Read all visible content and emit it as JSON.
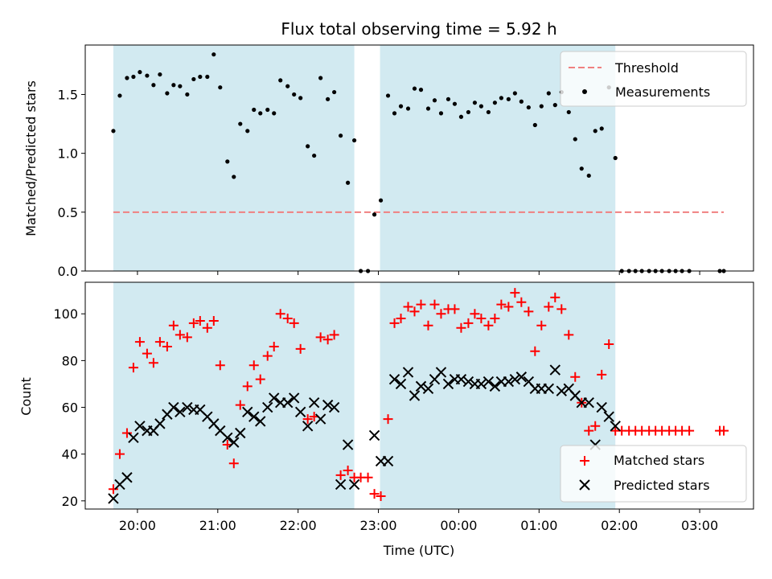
{
  "chart_data": [
    {
      "type": "scatter",
      "title": "Flux total observing time = 5.92 h",
      "xlabel": "",
      "ylabel": "Matched/Predicted stars",
      "x_units": "hours since 19:00 UTC",
      "xlim": [
        19.35,
        27.67
      ],
      "ylim": [
        0,
        1.92
      ],
      "yticks": [
        0.0,
        0.5,
        1.0,
        1.5
      ],
      "ytick_labels": [
        "0.0",
        "0.5",
        "1.0",
        "1.5"
      ],
      "xticks": [
        20,
        21,
        22,
        23,
        24,
        25,
        26,
        27
      ],
      "grid": false,
      "legend_position": "upper right",
      "shaded_regions": [
        [
          19.7,
          22.7
        ],
        [
          23.02,
          25.95
        ]
      ],
      "shade_color": "#add8e6",
      "threshold": {
        "name": "Threshold",
        "value": 0.5,
        "x_range": [
          19.7,
          27.3
        ],
        "color": "#f08080"
      },
      "series": [
        {
          "name": "Measurements",
          "marker": "dot",
          "color": "#000000",
          "x": [
            19.7,
            19.78,
            19.87,
            19.95,
            20.03,
            20.12,
            20.2,
            20.28,
            20.37,
            20.45,
            20.53,
            20.62,
            20.7,
            20.78,
            20.87,
            20.95,
            21.03,
            21.12,
            21.2,
            21.28,
            21.37,
            21.45,
            21.53,
            21.62,
            21.7,
            21.78,
            21.87,
            21.95,
            22.03,
            22.12,
            22.2,
            22.28,
            22.37,
            22.45,
            22.53,
            22.62,
            22.7,
            22.78,
            22.87,
            22.95,
            23.03,
            23.12,
            23.2,
            23.28,
            23.37,
            23.45,
            23.53,
            23.62,
            23.7,
            23.78,
            23.87,
            23.95,
            24.03,
            24.12,
            24.2,
            24.28,
            24.37,
            24.45,
            24.53,
            24.62,
            24.7,
            24.78,
            24.87,
            24.95,
            25.03,
            25.12,
            25.2,
            25.28,
            25.37,
            25.45,
            25.53,
            25.62,
            25.7,
            25.78,
            25.87,
            25.95,
            26.03,
            26.12,
            26.2,
            26.28,
            26.37,
            26.45,
            26.53,
            26.62,
            26.7,
            26.78,
            26.87,
            27.25,
            27.3
          ],
          "y": [
            1.19,
            1.49,
            1.64,
            1.65,
            1.69,
            1.66,
            1.58,
            1.67,
            1.51,
            1.58,
            1.57,
            1.5,
            1.63,
            1.65,
            1.65,
            1.84,
            1.56,
            0.93,
            0.8,
            1.25,
            1.19,
            1.37,
            1.34,
            1.37,
            1.34,
            1.62,
            1.57,
            1.5,
            1.47,
            1.06,
            0.98,
            1.64,
            1.46,
            1.52,
            1.15,
            0.75,
            1.11,
            0,
            0,
            0.48,
            0.6,
            1.49,
            1.34,
            1.4,
            1.38,
            1.55,
            1.54,
            1.38,
            1.45,
            1.34,
            1.46,
            1.42,
            1.31,
            1.35,
            1.43,
            1.4,
            1.35,
            1.43,
            1.47,
            1.46,
            1.51,
            1.44,
            1.39,
            1.24,
            1.4,
            1.51,
            1.41,
            1.52,
            1.35,
            1.12,
            0.87,
            0.81,
            1.19,
            1.21,
            1.56,
            0.96,
            0,
            0,
            0,
            0,
            0,
            0,
            0,
            0,
            0,
            0,
            0,
            0,
            0
          ]
        }
      ]
    },
    {
      "type": "scatter",
      "title": "",
      "xlabel": "Time (UTC)",
      "ylabel": "Count",
      "x_units": "hours since 19:00 UTC",
      "xlim": [
        19.35,
        27.67
      ],
      "ylim": [
        16.5,
        113.5
      ],
      "yticks": [
        20,
        40,
        60,
        80,
        100
      ],
      "ytick_labels": [
        "20",
        "40",
        "60",
        "80",
        "100"
      ],
      "xticks": [
        20,
        21,
        22,
        23,
        24,
        25,
        26,
        27
      ],
      "xtick_labels": [
        "20:00",
        "21:00",
        "22:00",
        "23:00",
        "00:00",
        "01:00",
        "02:00",
        "03:00"
      ],
      "grid": false,
      "legend_position": "lower right",
      "shaded_regions": [
        [
          19.7,
          22.7
        ],
        [
          23.02,
          25.95
        ]
      ],
      "shade_color": "#add8e6",
      "series": [
        {
          "name": "Matched stars",
          "marker": "plus",
          "color": "#ff0000",
          "x": [
            19.7,
            19.78,
            19.87,
            19.95,
            20.03,
            20.12,
            20.2,
            20.28,
            20.37,
            20.45,
            20.53,
            20.62,
            20.7,
            20.78,
            20.87,
            20.95,
            21.03,
            21.12,
            21.2,
            21.28,
            21.37,
            21.45,
            21.53,
            21.62,
            21.7,
            21.78,
            21.87,
            21.95,
            22.03,
            22.12,
            22.2,
            22.28,
            22.37,
            22.45,
            22.53,
            22.62,
            22.7,
            22.78,
            22.87,
            22.95,
            23.03,
            23.12,
            23.2,
            23.28,
            23.37,
            23.45,
            23.53,
            23.62,
            23.7,
            23.78,
            23.87,
            23.95,
            24.03,
            24.12,
            24.2,
            24.28,
            24.37,
            24.45,
            24.53,
            24.62,
            24.7,
            24.78,
            24.87,
            24.95,
            25.03,
            25.12,
            25.2,
            25.28,
            25.37,
            25.45,
            25.53,
            25.62,
            25.7,
            25.78,
            25.87,
            25.95,
            26.03,
            26.12,
            26.2,
            26.28,
            26.37,
            26.45,
            26.53,
            26.62,
            26.7,
            26.78,
            26.87,
            27.25,
            27.3
          ],
          "y": [
            25,
            40,
            49,
            77,
            88,
            83,
            79,
            88,
            86,
            95,
            91,
            90,
            96,
            97,
            94,
            97,
            78,
            44,
            36,
            61,
            69,
            78,
            72,
            82,
            86,
            100,
            98,
            96,
            85,
            55,
            56,
            90,
            89,
            91,
            31,
            33,
            30,
            30,
            30,
            23,
            22,
            55,
            96,
            98,
            103,
            101,
            104,
            95,
            104,
            100,
            102,
            102,
            94,
            96,
            100,
            98,
            95,
            98,
            104,
            103,
            109,
            105,
            101,
            84,
            95,
            103,
            107,
            102,
            91,
            73,
            62,
            50,
            52,
            74,
            87,
            50,
            50,
            50,
            50,
            50,
            50,
            50,
            50,
            50,
            50,
            50,
            50,
            50,
            50
          ]
        },
        {
          "name": "Predicted stars",
          "marker": "x",
          "color": "#000000",
          "x": [
            19.7,
            19.78,
            19.87,
            19.95,
            20.03,
            20.12,
            20.2,
            20.28,
            20.37,
            20.45,
            20.53,
            20.62,
            20.7,
            20.78,
            20.87,
            20.95,
            21.03,
            21.12,
            21.2,
            21.28,
            21.37,
            21.45,
            21.53,
            21.62,
            21.7,
            21.78,
            21.87,
            21.95,
            22.03,
            22.12,
            22.2,
            22.28,
            22.37,
            22.45,
            22.53,
            22.62,
            22.7,
            22.95,
            23.03,
            23.12,
            23.2,
            23.28,
            23.37,
            23.45,
            23.53,
            23.62,
            23.7,
            23.78,
            23.87,
            23.95,
            24.03,
            24.12,
            24.2,
            24.28,
            24.37,
            24.45,
            24.53,
            24.62,
            24.7,
            24.78,
            24.87,
            24.95,
            25.03,
            25.12,
            25.2,
            25.28,
            25.37,
            25.45,
            25.53,
            25.62,
            25.7,
            25.78,
            25.87,
            25.95
          ],
          "y": [
            21,
            27,
            30,
            47,
            52,
            50,
            50,
            53,
            57,
            60,
            58,
            60,
            59,
            59,
            56,
            53,
            50,
            47,
            45,
            49,
            58,
            56,
            54,
            60,
            64,
            62,
            62,
            64,
            58,
            52,
            62,
            55,
            61,
            60,
            27,
            44,
            27,
            48,
            37,
            37,
            72,
            70,
            75,
            65,
            69,
            68,
            72,
            75,
            70,
            72,
            72,
            71,
            70,
            70,
            71,
            69,
            71,
            71,
            72,
            73,
            71,
            68,
            68,
            68,
            76,
            67,
            68,
            65,
            62,
            62,
            44,
            60,
            56,
            52
          ]
        }
      ]
    }
  ]
}
